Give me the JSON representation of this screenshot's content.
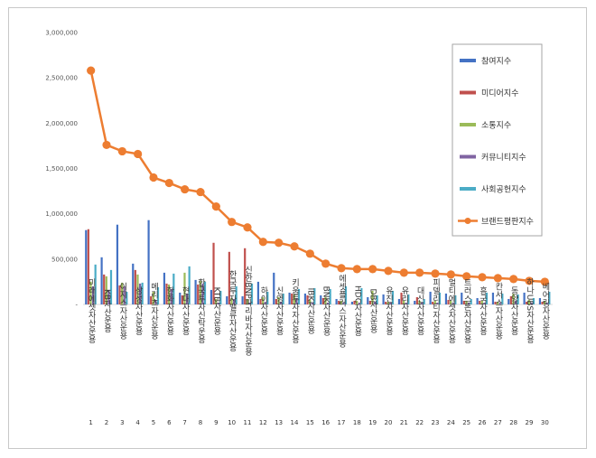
{
  "chart_data": {
    "type": "bar+line",
    "ylim": [
      0,
      3000000
    ],
    "yticks": [
      "-",
      "500,000",
      "1,000,000",
      "1,500,000",
      "2,000,000",
      "2,500,000",
      "3,000,000"
    ],
    "categories": [
      "미래에셋자산운용",
      "KB자산운용",
      "이지스자산운용",
      "삼성자산운용",
      "메리츠자산운용",
      "한화자산운용",
      "현대자산운용",
      "한국투자신탁운용",
      "KTB자산운용",
      "한국투자밸류자산운용",
      "신한BNP파리바자산운용",
      "하이자산운용",
      "신영자산운용",
      "키움투자자산운용",
      "IBK자산운용",
      "BNK자산운용",
      "에셋플러스자산운용",
      "HDC자산운용",
      "DB자산운용",
      "유진자산운용",
      "유리자산운용",
      "대신자산운용",
      "피델리티자산운용",
      "멀티에셋자산운용",
      "트러스톤자산운용",
      "흥국자산운용",
      "칸서스자산운용",
      "동양자산운용",
      "하나UBS자산운용",
      "베어링자산운용"
    ],
    "ranks": [
      "1",
      "2",
      "3",
      "4",
      "5",
      "6",
      "7",
      "8",
      "9",
      "10",
      "11",
      "12",
      "13",
      "14",
      "15",
      "16",
      "17",
      "18",
      "19",
      "20",
      "21",
      "22",
      "23",
      "24",
      "25",
      "26",
      "27",
      "28",
      "29",
      "30"
    ],
    "series": [
      {
        "name": "참여지수",
        "color": "#4472c4",
        "values": [
          820000,
          520000,
          880000,
          450000,
          930000,
          350000,
          130000,
          270000,
          160000,
          90000,
          90000,
          250000,
          350000,
          130000,
          120000,
          100000,
          60000,
          30000,
          80000,
          110000,
          60000,
          40000,
          140000,
          120000,
          130000,
          70000,
          130000,
          60000,
          130000,
          70000
        ]
      },
      {
        "name": "미디어지수",
        "color": "#c0504d",
        "values": [
          830000,
          330000,
          210000,
          380000,
          90000,
          230000,
          100000,
          220000,
          680000,
          580000,
          620000,
          60000,
          60000,
          120000,
          100000,
          70000,
          40000,
          40000,
          40000,
          30000,
          130000,
          80000,
          30000,
          50000,
          40000,
          40000,
          30000,
          90000,
          30000,
          30000
        ]
      },
      {
        "name": "소통지수",
        "color": "#9bbb59",
        "values": [
          250000,
          310000,
          240000,
          330000,
          140000,
          220000,
          350000,
          260000,
          60000,
          70000,
          60000,
          80000,
          80000,
          110000,
          50000,
          80000,
          40000,
          40000,
          150000,
          30000,
          40000,
          40000,
          40000,
          40000,
          40000,
          40000,
          30000,
          120000,
          50000,
          40000
        ]
      },
      {
        "name": "커뮤니티지수",
        "color": "#8064a2",
        "values": [
          200000,
          160000,
          200000,
          230000,
          50000,
          170000,
          120000,
          230000,
          20000,
          60000,
          20000,
          30000,
          30000,
          70000,
          20000,
          20000,
          20000,
          20000,
          30000,
          20000,
          20000,
          20000,
          20000,
          20000,
          20000,
          20000,
          20000,
          40000,
          20000,
          20000
        ]
      },
      {
        "name": "사회공헌지수",
        "color": "#4bacc6",
        "values": [
          440000,
          380000,
          140000,
          240000,
          190000,
          340000,
          420000,
          250000,
          150000,
          200000,
          230000,
          140000,
          120000,
          170000,
          180000,
          170000,
          200000,
          180000,
          100000,
          150000,
          110000,
          60000,
          130000,
          100000,
          60000,
          130000,
          120000,
          110000,
          70000,
          140000
        ]
      }
    ],
    "line": {
      "name": "브랜드평판지수",
      "color": "#ed7d31",
      "values": [
        2580000,
        1760000,
        1690000,
        1660000,
        1400000,
        1340000,
        1270000,
        1240000,
        1080000,
        910000,
        850000,
        690000,
        680000,
        640000,
        560000,
        450000,
        400000,
        390000,
        390000,
        370000,
        350000,
        350000,
        340000,
        330000,
        310000,
        300000,
        290000,
        280000,
        260000,
        250000
      ]
    },
    "legend_position": "right"
  }
}
